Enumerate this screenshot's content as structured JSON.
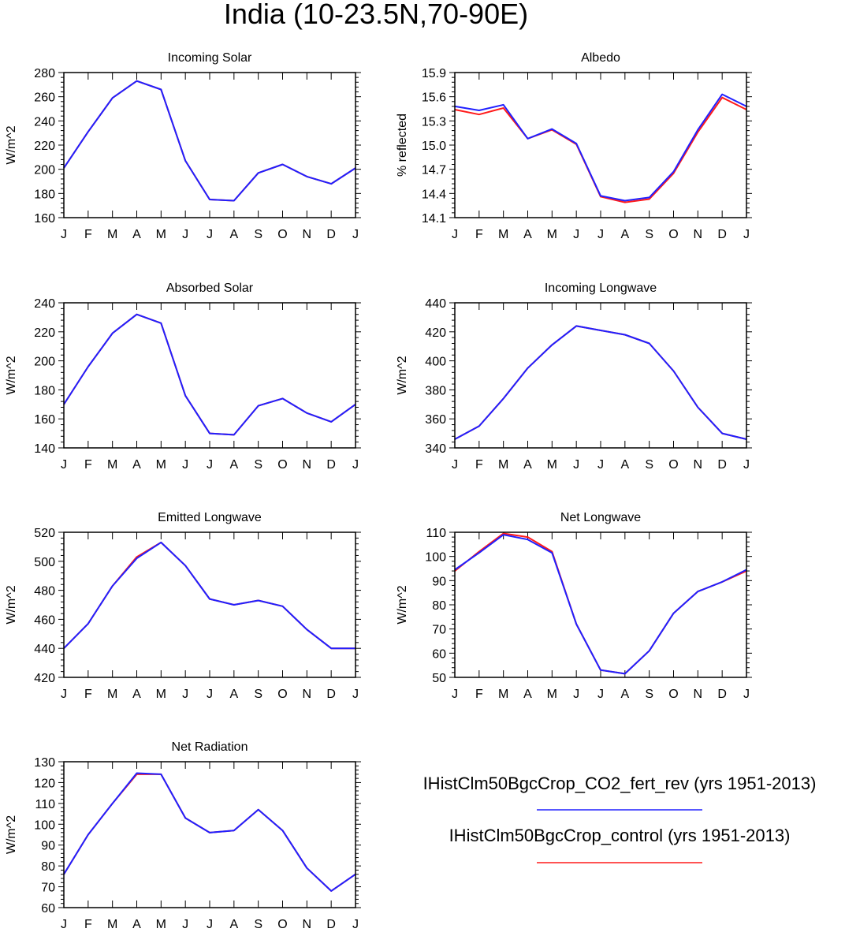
{
  "title": "India (10-23.5N,70-90E)",
  "months": [
    "J",
    "F",
    "M",
    "A",
    "M",
    "J",
    "J",
    "A",
    "S",
    "O",
    "N",
    "D",
    "J"
  ],
  "colors": {
    "fert_rev": "#2020ff",
    "control": "#ff1a1a",
    "axis": "#000000"
  },
  "legend": [
    {
      "label": "IHistClm50BgcCrop_CO2_fert_rev (yrs 1951-2013)",
      "color": "#2020ff"
    },
    {
      "label": "IHistClm50BgcCrop_control (yrs 1951-2013)",
      "color": "#ff1a1a"
    }
  ],
  "chart_data": [
    {
      "type": "line",
      "title": "Incoming Solar",
      "ylabel": "W/m^2",
      "ylim": [
        160,
        280
      ],
      "yticks": [
        160,
        180,
        200,
        220,
        240,
        260,
        280
      ],
      "tick_decimals": 0,
      "series": [
        {
          "values": [
            201,
            231,
            259,
            273,
            266,
            207,
            175,
            174,
            197,
            204,
            194,
            188,
            201
          ],
          "color": "#ff1a1a"
        },
        {
          "values": [
            201,
            231,
            259,
            273,
            266,
            207,
            175,
            174,
            197,
            204,
            194,
            188,
            201
          ],
          "color": "#2020ff"
        }
      ]
    },
    {
      "type": "line",
      "title": "Albedo",
      "ylabel": "% reflected",
      "ylim": [
        14.1,
        15.9
      ],
      "yticks": [
        14.1,
        14.4,
        14.7,
        15.0,
        15.3,
        15.6,
        15.9
      ],
      "tick_decimals": 1,
      "series": [
        {
          "values": [
            15.44,
            15.38,
            15.46,
            15.08,
            15.19,
            15.01,
            14.36,
            14.29,
            14.33,
            14.65,
            15.16,
            15.59,
            15.44
          ],
          "color": "#ff1a1a"
        },
        {
          "values": [
            15.48,
            15.43,
            15.5,
            15.08,
            15.2,
            15.02,
            14.37,
            14.31,
            14.35,
            14.67,
            15.19,
            15.63,
            15.48
          ],
          "color": "#2020ff"
        }
      ]
    },
    {
      "type": "line",
      "title": "Absorbed Solar",
      "ylabel": "W/m^2",
      "ylim": [
        140,
        240
      ],
      "yticks": [
        140,
        160,
        180,
        200,
        220,
        240
      ],
      "tick_decimals": 0,
      "series": [
        {
          "values": [
            170,
            196,
            219,
            232,
            226,
            176,
            150,
            149,
            169,
            174,
            164,
            158,
            170
          ],
          "color": "#ff1a1a"
        },
        {
          "values": [
            170,
            196,
            219,
            232,
            226,
            176,
            150,
            149,
            169,
            174,
            164,
            158,
            170
          ],
          "color": "#2020ff"
        }
      ]
    },
    {
      "type": "line",
      "title": "Incoming Longwave",
      "ylabel": "W/m^2",
      "ylim": [
        340,
        440
      ],
      "yticks": [
        340,
        360,
        380,
        400,
        420,
        440
      ],
      "tick_decimals": 0,
      "series": [
        {
          "values": [
            346,
            355,
            374,
            395,
            411,
            424,
            421,
            418,
            412,
            393,
            368,
            350,
            346
          ],
          "color": "#ff1a1a"
        },
        {
          "values": [
            346,
            355,
            374,
            395,
            411,
            424,
            421,
            418,
            412,
            393,
            368,
            350,
            346
          ],
          "color": "#2020ff"
        }
      ]
    },
    {
      "type": "line",
      "title": "Emitted Longwave",
      "ylabel": "W/m^2",
      "ylim": [
        420,
        520
      ],
      "yticks": [
        420,
        440,
        460,
        480,
        500,
        520
      ],
      "tick_decimals": 0,
      "series": [
        {
          "values": [
            440,
            457,
            483,
            503,
            513,
            497,
            474,
            470,
            473,
            469,
            453,
            440,
            440
          ],
          "color": "#ff1a1a"
        },
        {
          "values": [
            440,
            457,
            483,
            502,
            513,
            497,
            474,
            470,
            473,
            469,
            453,
            440,
            440
          ],
          "color": "#2020ff"
        }
      ]
    },
    {
      "type": "line",
      "title": "Net Longwave",
      "ylabel": "W/m^2",
      "ylim": [
        50,
        110
      ],
      "yticks": [
        50,
        60,
        70,
        80,
        90,
        100,
        110
      ],
      "tick_decimals": 0,
      "series": [
        {
          "values": [
            94,
            102,
            109.5,
            108,
            102,
            72,
            53,
            51.5,
            61,
            76.5,
            85.5,
            89.5,
            94
          ],
          "color": "#ff1a1a"
        },
        {
          "values": [
            94.5,
            101.5,
            109,
            107,
            101.5,
            72,
            53,
            51.5,
            61,
            76.5,
            85.5,
            89.5,
            94.5
          ],
          "color": "#2020ff"
        }
      ]
    },
    {
      "type": "line",
      "title": "Net Radiation",
      "ylabel": "W/m^2",
      "ylim": [
        60,
        130
      ],
      "yticks": [
        60,
        70,
        80,
        90,
        100,
        110,
        120,
        130
      ],
      "tick_decimals": 0,
      "series": [
        {
          "values": [
            76,
            95,
            110,
            124,
            124,
            103,
            96,
            97,
            107,
            97,
            79,
            68,
            76
          ],
          "color": "#ff1a1a"
        },
        {
          "values": [
            76,
            95,
            110,
            124.5,
            124,
            103,
            96,
            97,
            107,
            97,
            79,
            68,
            76
          ],
          "color": "#2020ff"
        }
      ]
    }
  ]
}
